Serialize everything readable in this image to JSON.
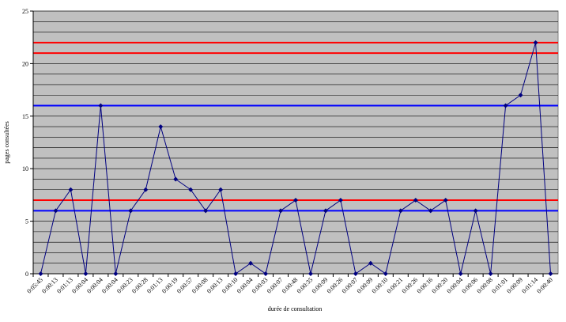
{
  "chart_data": {
    "type": "line",
    "x_label": "durée de consultation",
    "y_label": "pages consultées",
    "categories": [
      "0:05:45",
      "0:00:13",
      "0:01:13",
      "0:00:04",
      "0:00:04",
      "0:00:04",
      "0:00:23",
      "0:00:28",
      "0:01:13",
      "0:00:19",
      "0:00:57",
      "0:00:08",
      "0:00:13",
      "0:00:10",
      "0:00:04",
      "0:00:03",
      "0:00:07",
      "0:00:48",
      "0:00:35",
      "0:00:09",
      "0:00:26",
      "0:00:07",
      "0:00:09",
      "0:00:10",
      "0:00:21",
      "0:00:26",
      "0:00:16",
      "0:00:20",
      "0:00:04",
      "0:00:06",
      "0:00:08",
      "0:01:01",
      "0:00:09",
      "0:01:14",
      "0:00:40"
    ],
    "values": [
      0,
      6,
      8,
      0,
      16,
      0,
      6,
      8,
      14,
      9,
      8,
      6,
      8,
      0,
      1,
      0,
      6,
      7,
      0,
      6,
      7,
      0,
      1,
      0,
      6,
      7,
      6,
      7,
      0,
      6,
      0,
      16,
      17,
      22,
      0
    ],
    "color": "#000080",
    "ylim": [
      0,
      25
    ],
    "yticks": [
      0,
      5,
      10,
      15,
      20,
      25
    ],
    "grid": true,
    "minor_gridlines_per_tick": 5,
    "plot_background": "#c0c0c0",
    "reference_lines": [
      {
        "value": 22,
        "color": "#ff0000"
      },
      {
        "value": 21,
        "color": "#ff0000"
      },
      {
        "value": 16,
        "color": "#0000ff"
      },
      {
        "value": 7,
        "color": "#ff0000"
      },
      {
        "value": 6,
        "color": "#0000ff"
      }
    ]
  }
}
